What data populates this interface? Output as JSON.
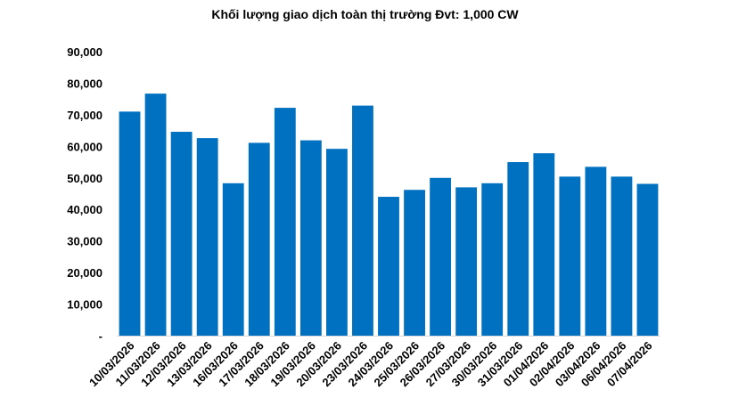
{
  "chart_data": {
    "type": "bar",
    "title": "Khối lượng giao dịch toàn thị trường Đvt: 1,000 CW",
    "xlabel": "",
    "ylabel": "",
    "ylim": [
      0,
      90000
    ],
    "yticks": [
      0,
      10000,
      20000,
      30000,
      40000,
      50000,
      60000,
      70000,
      80000,
      90000
    ],
    "ytick_labels": [
      "-",
      "10,000",
      "20,000",
      "30,000",
      "40,000",
      "50,000",
      "60,000",
      "70,000",
      "80,000",
      "90,000"
    ],
    "grid": false,
    "bar_color": "#0070C0",
    "categories": [
      "10/03/2026",
      "11/03/2026",
      "12/03/2026",
      "13/03/2026",
      "16/03/2026",
      "17/03/2026",
      "18/03/2026",
      "19/03/2026",
      "20/03/2026",
      "23/03/2026",
      "24/03/2026",
      "25/03/2026",
      "26/03/2026",
      "27/03/2026",
      "30/03/2026",
      "31/03/2026",
      "01/04/2026",
      "02/04/2026",
      "03/04/2026",
      "06/04/2026",
      "07/04/2026"
    ],
    "values": [
      71000,
      76700,
      64600,
      62600,
      48300,
      61100,
      72200,
      61900,
      59200,
      72900,
      44000,
      46200,
      50000,
      47000,
      48300,
      55000,
      57800,
      50400,
      53500,
      50400,
      48100
    ]
  }
}
